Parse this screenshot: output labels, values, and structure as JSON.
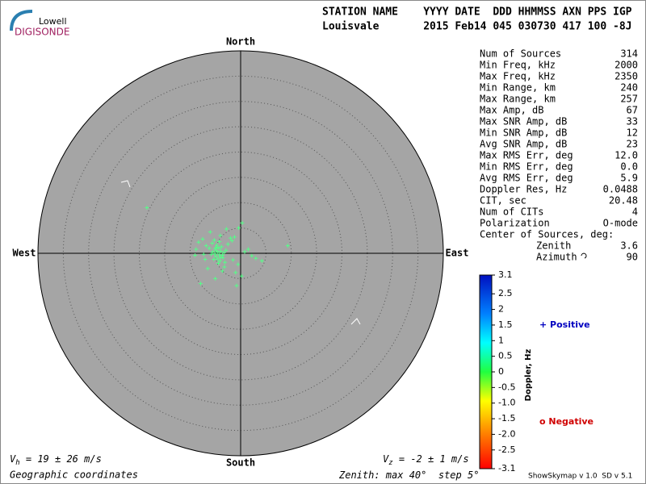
{
  "logo": {
    "top": "Lowell",
    "bottom": "DIGISONDE"
  },
  "header": {
    "line1": "STATION NAME    YYYY DATE  DDD HHMMSS AXN PPS IGP",
    "line2": "Louisvale       2015 Feb14 045 030730 417 100 -8J"
  },
  "compass": {
    "north": "North",
    "south": "South",
    "west": "West",
    "east": "East"
  },
  "stats": [
    [
      "Num of Sources",
      "314"
    ],
    [
      "Min Freq, kHz",
      "2000"
    ],
    [
      "Max Freq, kHz",
      "2350"
    ],
    [
      "Min Range, km",
      "240"
    ],
    [
      "Max Range, km",
      "257"
    ],
    [
      "Max Amp, dB",
      "67"
    ],
    [
      "Max SNR Amp, dB",
      "33"
    ],
    [
      "Min SNR Amp, dB",
      "12"
    ],
    [
      "Avg SNR Amp, dB",
      "23"
    ],
    [
      "Max RMS Err, deg",
      "12.0"
    ],
    [
      "Min RMS Err, deg",
      "0.0"
    ],
    [
      "Avg RMS Err, deg",
      "5.9"
    ],
    [
      "Doppler Res, Hz",
      "0.0488"
    ],
    [
      "CIT, sec",
      "20.48"
    ],
    [
      "Num of CITs",
      "4"
    ],
    [
      "Polarization",
      "O-mode"
    ]
  ],
  "center": {
    "title": "Center of Sources, deg:",
    "zenith_label": "Zenith",
    "zenith": "3.6",
    "azimuth_label": "Azimuth",
    "azimuth": "90"
  },
  "colorbar": {
    "title": "Doppler, Hz",
    "lim": [
      -3.1,
      3.1
    ],
    "ticks": [
      {
        "value": 3.1,
        "label": "3.1"
      },
      {
        "value": 2.5,
        "label": "2.5"
      },
      2,
      {
        "value": 1.5,
        "label": "1.5"
      },
      1,
      {
        "value": 0.5,
        "label": "0.5"
      },
      0,
      {
        "value": -0.5,
        "label": "-0.5"
      },
      {
        "value": -1,
        "label": "-1.0"
      },
      {
        "value": -1.5,
        "label": "-1.5"
      },
      {
        "value": -2,
        "label": "-2.0"
      },
      {
        "value": -2.5,
        "label": "-2.5"
      },
      {
        "value": -3.1,
        "label": "-3.1"
      }
    ]
  },
  "legend": {
    "positive": "+ Positive",
    "negative": "o Negative"
  },
  "footer": {
    "vh_v": "V",
    "vh_sub": "h",
    "vh_text": " = 19 ± 26 m/s",
    "vz_v": "V",
    "vz_sub": "z",
    "vz_text": " = -2 ± 1 m/s",
    "coords": "Geographic coordinates",
    "zenith_text": "Zenith: max ",
    "zenith_max": {
      "value": 40,
      "label": "40°"
    },
    "step_text": "  step ",
    "zenith_step": {
      "value": 5,
      "label": "5°"
    },
    "version": "ShowSkymap v 1.0  SD v 5.1"
  },
  "points": {
    "color": "#55ff88",
    "x": [
      -4.5,
      -4.2,
      -4.8,
      -5.1,
      -3.9,
      -4.0,
      -5.5,
      -3.6,
      -4.6,
      -4.3,
      -5.0,
      -3.3,
      -4.9,
      -4.1,
      -5.8,
      -3.8,
      -4.4,
      -4.7,
      -5.3,
      -3.5,
      -6.2,
      -2.9,
      -4.2,
      -5.6,
      -3.1,
      -6.8,
      -7.5,
      -8.3,
      -7.0,
      -9.0,
      -8.8,
      -6.5,
      -2.5,
      -1.7,
      -1.2,
      -0.4,
      0.3,
      1.5,
      2.2,
      3.0,
      4.2,
      9.3,
      -18.5,
      -1.0,
      0.2,
      -0.8,
      -7.9,
      -5.0,
      -3.2,
      -1.5,
      -4.0,
      -6.0,
      -2.8,
      -2.0,
      -0.5,
      0.8,
      -3.6,
      -5.2,
      -7.3,
      -4.8
    ],
    "y": [
      0.2,
      -0.3,
      0.5,
      -0.1,
      0.4,
      -0.8,
      0.3,
      -0.4,
      -1.1,
      1.0,
      0.9,
      0.1,
      -0.6,
      -1.5,
      -0.2,
      1.3,
      -2.0,
      1.6,
      -1.2,
      -0.9,
      1.0,
      0.6,
      2.3,
      2.0,
      -1.8,
      1.5,
      2.8,
      2.2,
      -1.2,
      -0.4,
      0.8,
      -3.0,
      1.8,
      2.5,
      3.2,
      5.0,
      6.0,
      0.8,
      -0.5,
      -1.0,
      -1.5,
      1.5,
      9.0,
      -3.8,
      -4.5,
      -6.4,
      -6.0,
      -5.0,
      -2.7,
      -1.3,
      3.5,
      4.2,
      4.8,
      3.0,
      -2.2,
      0.3,
      -3.5,
      2.6,
      -0.2,
      1.2
    ]
  }
}
